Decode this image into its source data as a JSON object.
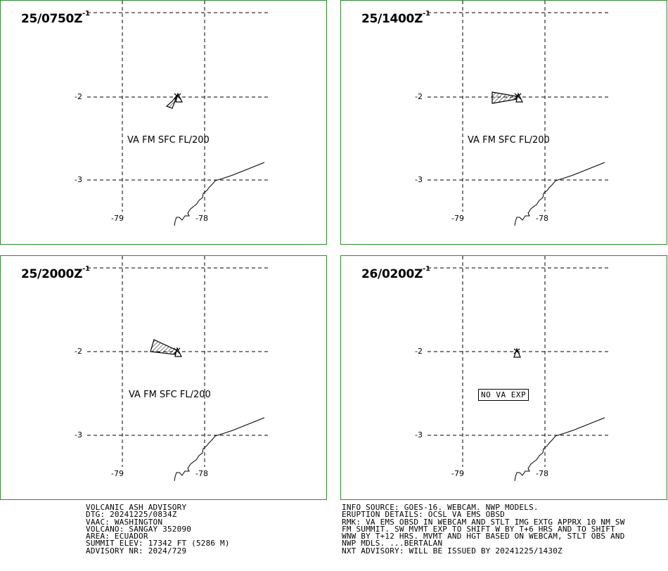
{
  "panels": [
    {
      "time": "25/0750Z",
      "sup": "-1",
      "forecast": "VA FM SFC FL/200",
      "box": false
    },
    {
      "time": "25/1400Z",
      "sup": "-1",
      "forecast": "VA FM SFC FL/200",
      "box": false
    },
    {
      "time": "25/2000Z",
      "sup": "-1",
      "forecast": "VA FM SFC FL/200",
      "box": false
    },
    {
      "time": "26/0200Z",
      "sup": "-1",
      "forecast": "NO VA EXP",
      "box": true
    }
  ],
  "labels": {
    "lat_top": "-2",
    "lat_bottom": "-3",
    "lon_left": "-79",
    "lon_right": "-78"
  },
  "advisory_left": [
    "VOLCANIC ASH ADVISORY",
    "DTG: 20241225/0834Z",
    "VAAC: WASHINGTON",
    "VOLCANO: SANGAY 352090",
    "AREA: ECUADOR",
    "SUMMIT ELEV: 17342 FT (5286 M)",
    "ADVISORY NR: 2024/729"
  ],
  "advisory_right": [
    "INFO SOURCE: GOES-16. WEBCAM. NWP MODELS.",
    "ERUPTION DETAILS: OCSL VA EMS OBSD",
    "RMK: VA EMS OBSD IN WEBCAM AND STLT IMG EXTG APPRX 10 NM SW",
    "FM SUMMIT. SW MVMT EXP TO SHIFT W BY T+6 HRS AND TO SHIFT",
    "WNW BY T+12 HRS. MVMT AND HGT BASED ON WEBCAM, STLT OBS AND",
    "NWP MDLS. ...BERTALAN",
    "NXT ADVISORY: WILL BE ISSUED BY 20241225/1430Z"
  ],
  "colors": {
    "frame": "#2e8b2e",
    "line": "#000000",
    "background": "#ffffff"
  }
}
